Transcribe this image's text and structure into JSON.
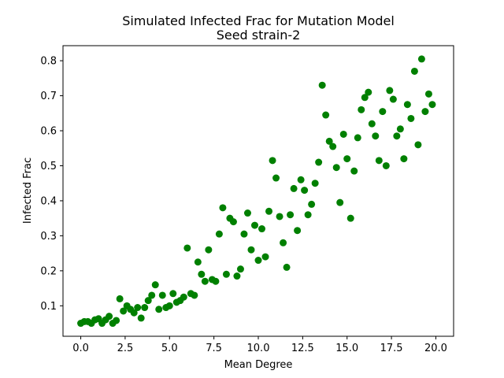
{
  "chart_data": {
    "type": "scatter",
    "title": "Simulated Infected Frac for Mutation Model",
    "subtitle": "Seed strain-2",
    "xlabel": "Mean Degree",
    "ylabel": "Infected Frac",
    "xlim": [
      -1.0,
      21.0
    ],
    "ylim": [
      0.013,
      0.843
    ],
    "xticks": [
      0.0,
      2.5,
      5.0,
      7.5,
      10.0,
      12.5,
      15.0,
      17.5,
      20.0
    ],
    "xtick_labels": [
      "0.0",
      "2.5",
      "5.0",
      "7.5",
      "10.0",
      "12.5",
      "15.0",
      "17.5",
      "20.0"
    ],
    "yticks": [
      0.1,
      0.2,
      0.3,
      0.4,
      0.5,
      0.6,
      0.7,
      0.8
    ],
    "ytick_labels": [
      "0.1",
      "0.2",
      "0.3",
      "0.4",
      "0.5",
      "0.6",
      "0.7",
      "0.8"
    ],
    "grid": false,
    "marker_color": "#008000",
    "series": [
      {
        "points": [
          [
            0.0,
            0.05
          ],
          [
            0.2,
            0.055
          ],
          [
            0.4,
            0.055
          ],
          [
            0.6,
            0.05
          ],
          [
            0.8,
            0.06
          ],
          [
            1.0,
            0.063
          ],
          [
            1.2,
            0.05
          ],
          [
            1.4,
            0.06
          ],
          [
            1.6,
            0.07
          ],
          [
            1.8,
            0.05
          ],
          [
            2.0,
            0.058
          ],
          [
            2.2,
            0.12
          ],
          [
            2.4,
            0.085
          ],
          [
            2.6,
            0.1
          ],
          [
            2.8,
            0.09
          ],
          [
            3.0,
            0.08
          ],
          [
            3.2,
            0.095
          ],
          [
            3.4,
            0.065
          ],
          [
            3.6,
            0.095
          ],
          [
            3.8,
            0.115
          ],
          [
            4.0,
            0.13
          ],
          [
            4.2,
            0.16
          ],
          [
            4.4,
            0.09
          ],
          [
            4.6,
            0.13
          ],
          [
            4.8,
            0.095
          ],
          [
            5.0,
            0.1
          ],
          [
            5.2,
            0.135
          ],
          [
            5.4,
            0.11
          ],
          [
            5.6,
            0.115
          ],
          [
            5.8,
            0.125
          ],
          [
            6.0,
            0.265
          ],
          [
            6.2,
            0.135
          ],
          [
            6.4,
            0.13
          ],
          [
            6.6,
            0.225
          ],
          [
            6.8,
            0.19
          ],
          [
            7.0,
            0.17
          ],
          [
            7.2,
            0.26
          ],
          [
            7.4,
            0.175
          ],
          [
            7.6,
            0.17
          ],
          [
            7.8,
            0.305
          ],
          [
            8.0,
            0.38
          ],
          [
            8.2,
            0.19
          ],
          [
            8.4,
            0.35
          ],
          [
            8.6,
            0.34
          ],
          [
            8.8,
            0.185
          ],
          [
            9.0,
            0.205
          ],
          [
            9.2,
            0.305
          ],
          [
            9.4,
            0.365
          ],
          [
            9.6,
            0.26
          ],
          [
            9.8,
            0.33
          ],
          [
            10.0,
            0.23
          ],
          [
            10.2,
            0.32
          ],
          [
            10.4,
            0.24
          ],
          [
            10.6,
            0.37
          ],
          [
            10.8,
            0.515
          ],
          [
            11.0,
            0.465
          ],
          [
            11.2,
            0.355
          ],
          [
            11.4,
            0.28
          ],
          [
            11.6,
            0.21
          ],
          [
            11.8,
            0.36
          ],
          [
            12.0,
            0.435
          ],
          [
            12.2,
            0.315
          ],
          [
            12.4,
            0.46
          ],
          [
            12.6,
            0.43
          ],
          [
            12.8,
            0.36
          ],
          [
            13.0,
            0.39
          ],
          [
            13.2,
            0.45
          ],
          [
            13.4,
            0.51
          ],
          [
            13.6,
            0.73
          ],
          [
            13.8,
            0.645
          ],
          [
            14.0,
            0.57
          ],
          [
            14.2,
            0.555
          ],
          [
            14.4,
            0.495
          ],
          [
            14.6,
            0.395
          ],
          [
            14.8,
            0.59
          ],
          [
            15.0,
            0.52
          ],
          [
            15.2,
            0.35
          ],
          [
            15.4,
            0.485
          ],
          [
            15.6,
            0.58
          ],
          [
            15.8,
            0.66
          ],
          [
            16.0,
            0.695
          ],
          [
            16.2,
            0.71
          ],
          [
            16.4,
            0.62
          ],
          [
            16.6,
            0.585
          ],
          [
            16.8,
            0.515
          ],
          [
            17.0,
            0.655
          ],
          [
            17.2,
            0.5
          ],
          [
            17.4,
            0.715
          ],
          [
            17.6,
            0.69
          ],
          [
            17.8,
            0.585
          ],
          [
            18.0,
            0.605
          ],
          [
            18.2,
            0.52
          ],
          [
            18.4,
            0.675
          ],
          [
            18.6,
            0.635
          ],
          [
            18.8,
            0.77
          ],
          [
            19.0,
            0.56
          ],
          [
            19.2,
            0.805
          ],
          [
            19.4,
            0.655
          ],
          [
            19.6,
            0.705
          ],
          [
            19.8,
            0.675
          ]
        ]
      }
    ]
  }
}
